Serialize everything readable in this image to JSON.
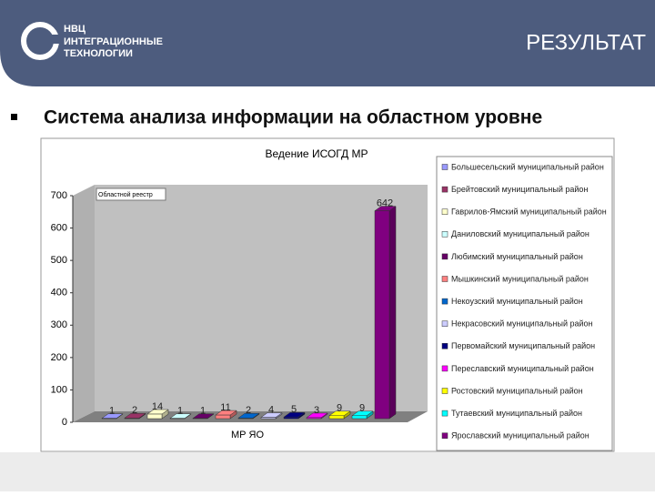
{
  "header": {
    "logo": [
      "НВЦ",
      "ИНТЕГРАЦИОННЫЕ",
      "ТЕХНОЛОГИИ"
    ],
    "title": "РЕЗУЛЬТАТ"
  },
  "heading": "Система анализа информации на областном уровне",
  "chart_data": {
    "type": "bar",
    "title": "Ведение ИСОГД МР",
    "x_label": "МР ЯО",
    "categories": [
      "МР ЯО"
    ],
    "annotation": "Областной реестр",
    "ylim": [
      0,
      700
    ],
    "yticks": [
      0,
      100,
      200,
      300,
      400,
      500,
      600,
      700
    ],
    "series": [
      {
        "name": "Большесельский муниципальный район",
        "color": "#9999ff",
        "values": [
          1
        ]
      },
      {
        "name": "Брейтовский муниципальный район",
        "color": "#993366",
        "values": [
          2
        ]
      },
      {
        "name": "Гаврилов-Ямский муниципальный район",
        "color": "#ffffcc",
        "values": [
          14
        ]
      },
      {
        "name": "Даниловский муниципальный район",
        "color": "#ccffff",
        "values": [
          1
        ]
      },
      {
        "name": "Любимский муниципальный район",
        "color": "#660066",
        "values": [
          1
        ]
      },
      {
        "name": "Мышкинский муниципальный район",
        "color": "#ff8080",
        "values": [
          11
        ]
      },
      {
        "name": "Некоузский муниципальный район",
        "color": "#0066cc",
        "values": [
          2
        ]
      },
      {
        "name": "Некрасовский муниципальный район",
        "color": "#ccccff",
        "values": [
          4
        ]
      },
      {
        "name": "Первомайский муниципальный район",
        "color": "#000080",
        "values": [
          5
        ]
      },
      {
        "name": "Переславский муниципальный район",
        "color": "#ff00ff",
        "values": [
          3
        ]
      },
      {
        "name": "Ростовский муниципальный район",
        "color": "#ffff00",
        "values": [
          9
        ]
      },
      {
        "name": "Тутаевский муниципальный район",
        "color": "#00ffff",
        "values": [
          9
        ]
      },
      {
        "name": "Ярославский муниципальный район",
        "color": "#800080",
        "values": [
          642
        ]
      }
    ]
  }
}
